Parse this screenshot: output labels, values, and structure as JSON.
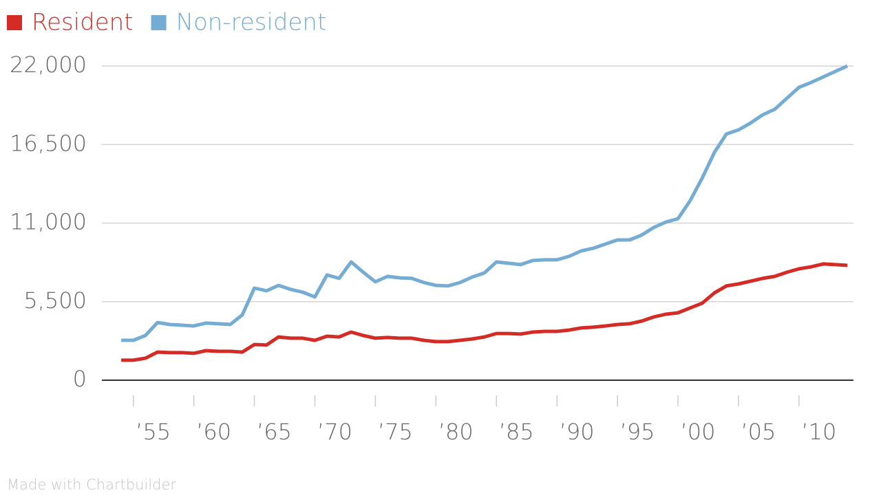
{
  "chart_data": {
    "type": "line",
    "x": [
      1954,
      1955,
      1956,
      1957,
      1958,
      1959,
      1960,
      1961,
      1962,
      1963,
      1964,
      1965,
      1966,
      1967,
      1968,
      1969,
      1970,
      1971,
      1972,
      1973,
      1974,
      1975,
      1976,
      1977,
      1978,
      1979,
      1980,
      1981,
      1982,
      1983,
      1984,
      1985,
      1986,
      1987,
      1988,
      1989,
      1990,
      1991,
      1992,
      1993,
      1994,
      1995,
      1996,
      1997,
      1998,
      1999,
      2000,
      2001,
      2002,
      2003,
      2004,
      2005,
      2006,
      2007,
      2008,
      2009,
      2010,
      2011,
      2012,
      2013,
      2014
    ],
    "series": [
      {
        "name": "Resident",
        "color": "#d52b25",
        "values": [
          1400,
          1400,
          1540,
          1970,
          1930,
          1930,
          1880,
          2070,
          2020,
          2020,
          1970,
          2500,
          2460,
          3030,
          2940,
          2940,
          2790,
          3080,
          3030,
          3370,
          3130,
          2940,
          2990,
          2940,
          2940,
          2790,
          2700,
          2700,
          2790,
          2890,
          3030,
          3270,
          3270,
          3230,
          3370,
          3420,
          3420,
          3510,
          3660,
          3710,
          3800,
          3900,
          3950,
          4140,
          4430,
          4620,
          4720,
          5060,
          5390,
          6110,
          6600,
          6740,
          6930,
          7130,
          7270,
          7560,
          7800,
          7940,
          8140,
          8090,
          8040
        ]
      },
      {
        "name": "Non-resident",
        "color": "#74acd4",
        "values": [
          2790,
          2790,
          3130,
          4040,
          3900,
          3850,
          3800,
          4000,
          3950,
          3900,
          4570,
          6450,
          6260,
          6640,
          6360,
          6160,
          5830,
          7370,
          7130,
          8280,
          7560,
          6890,
          7270,
          7170,
          7130,
          6840,
          6640,
          6600,
          6840,
          7220,
          7510,
          8280,
          8190,
          8090,
          8380,
          8430,
          8430,
          8670,
          9050,
          9240,
          9530,
          9820,
          9820,
          10160,
          10690,
          11070,
          11310,
          12560,
          14150,
          15940,
          17240,
          17530,
          18010,
          18580,
          18970,
          19740,
          20510,
          20850,
          21230,
          21620,
          22000
        ]
      }
    ],
    "xlim": [
      1952.4,
      2014.5
    ],
    "ylim": [
      0,
      22000
    ],
    "xticks": [
      {
        "value": 1955,
        "label": "’55"
      },
      {
        "value": 1960,
        "label": "’60"
      },
      {
        "value": 1965,
        "label": "’65"
      },
      {
        "value": 1970,
        "label": "’70"
      },
      {
        "value": 1975,
        "label": "’75"
      },
      {
        "value": 1980,
        "label": "’80"
      },
      {
        "value": 1985,
        "label": "’85"
      },
      {
        "value": 1990,
        "label": "’90"
      },
      {
        "value": 1995,
        "label": "’95"
      },
      {
        "value": 2000,
        "label": "’00"
      },
      {
        "value": 2005,
        "label": "’05"
      },
      {
        "value": 2010,
        "label": "’10"
      }
    ],
    "yticks": [
      0,
      {
        "value": 5500,
        "label": "5,500"
      },
      {
        "value": 11000,
        "label": "11,000"
      },
      {
        "value": 16500,
        "label": "16,500"
      },
      {
        "value": 22000,
        "label": "22,000"
      }
    ],
    "grid": true,
    "legend": "top-left",
    "footer": "Made with Chartbuilder"
  }
}
